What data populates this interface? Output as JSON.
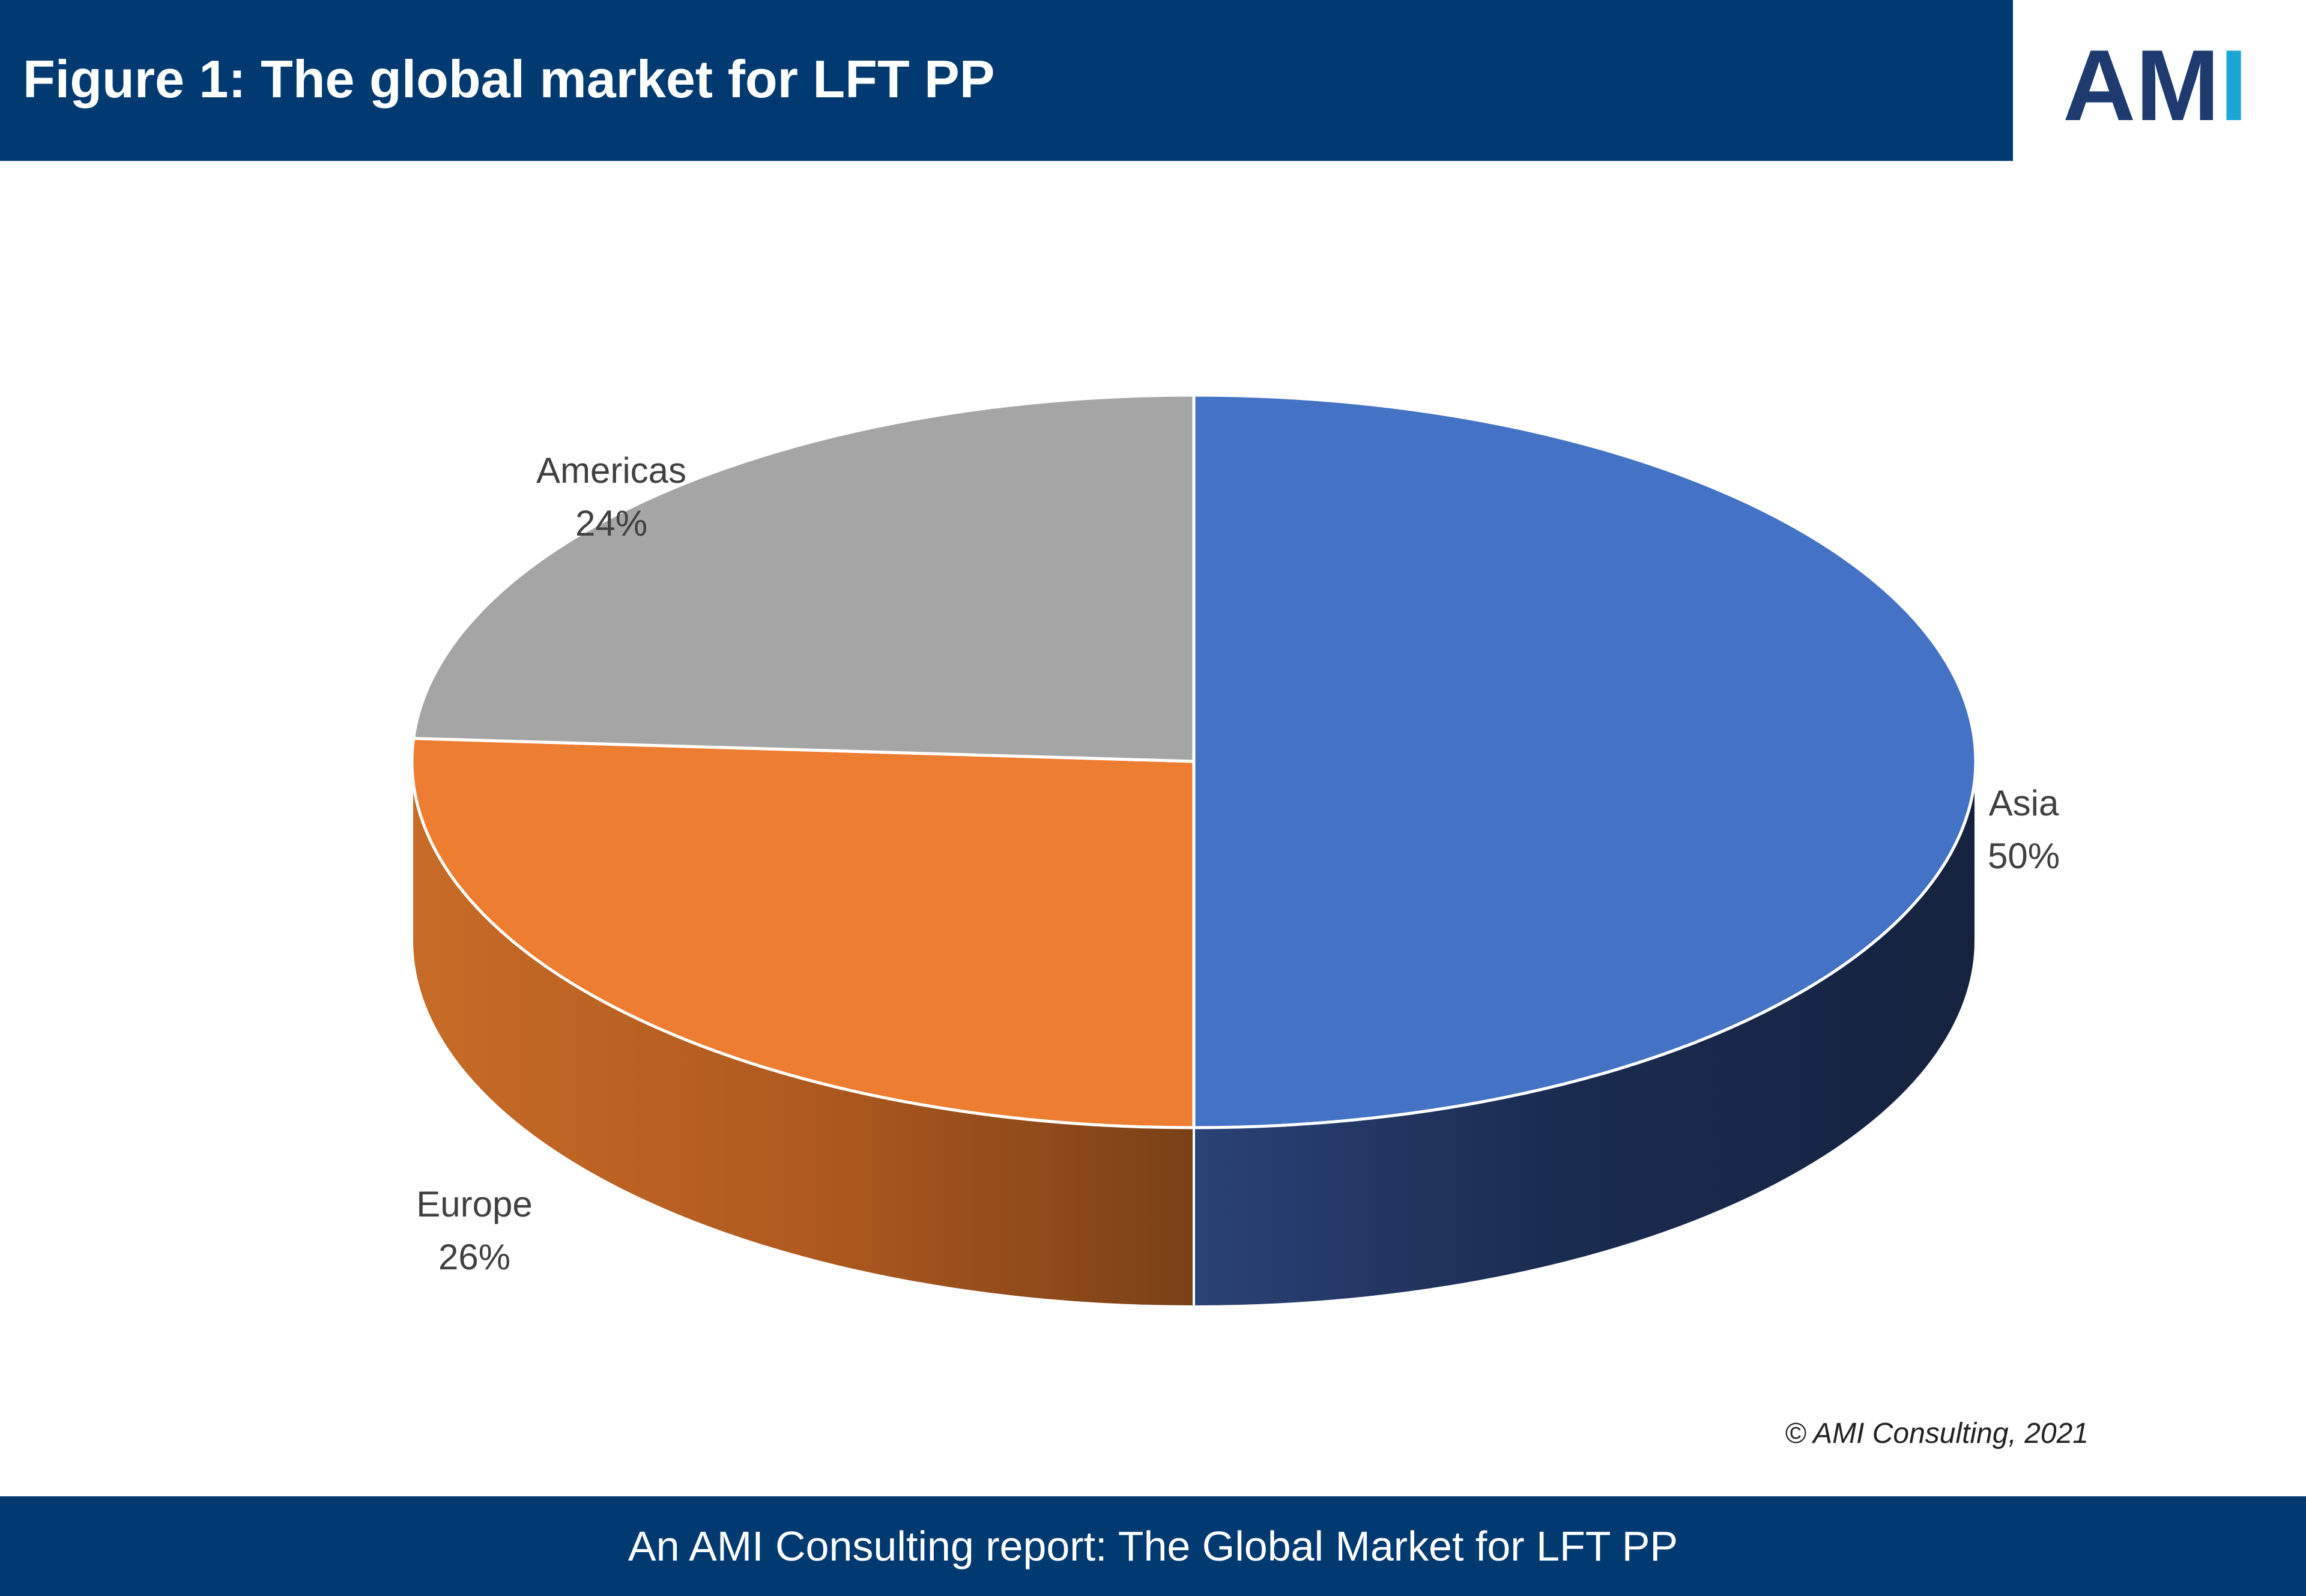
{
  "header": {
    "title": "Figure 1: The global market for LFT PP"
  },
  "logo": {
    "text": "AMI",
    "colors": {
      "dark": "#1e3a6e",
      "accent": "#18a7d6"
    }
  },
  "chart_data": {
    "type": "pie",
    "title": "",
    "labels": [
      "Asia",
      "Europe",
      "Americas"
    ],
    "values": [
      50,
      26,
      24
    ],
    "value_labels": [
      "50%",
      "26%",
      "24%"
    ],
    "colors": [
      "#4472c4",
      "#ed7d31",
      "#a5a5a5"
    ],
    "side_colors": [
      "#1b2c52",
      "#8c4a1c",
      "#6b6b6b"
    ],
    "legend": "none",
    "style": "3d"
  },
  "copyright": "© AMI Consulting, 2021",
  "footer": {
    "text": "An AMI Consulting report: The Global Market for LFT PP"
  }
}
